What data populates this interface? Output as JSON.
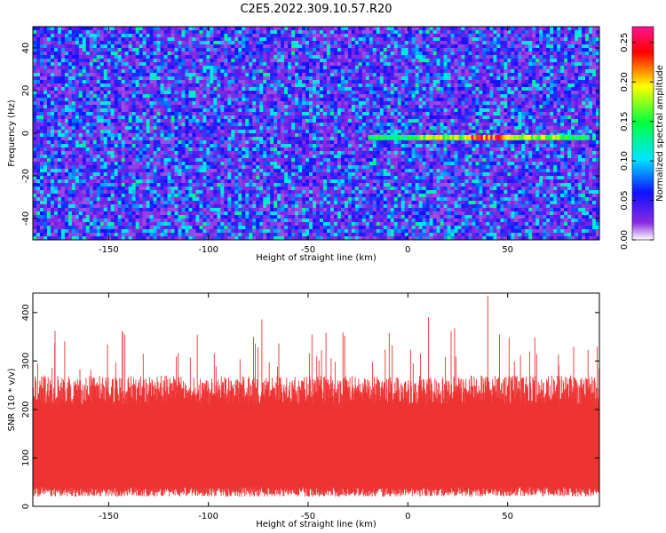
{
  "figure_title": "C2E5.2022.309.10.57.R20",
  "chart_data": [
    {
      "type": "heatmap",
      "xlabel": "Height of straight line (km)",
      "ylabel": "Frequency (Hz)",
      "xlim": [
        -188,
        96
      ],
      "ylim": [
        -50,
        50
      ],
      "xticks": [
        -150,
        -100,
        -50,
        0,
        50
      ],
      "yticks": [
        -40,
        -20,
        0,
        20,
        40
      ],
      "colorbar": {
        "label": "Normalized spectral amplitude",
        "range": [
          0,
          0.27
        ],
        "ticks": [
          "0.00",
          "0.05",
          "0.10",
          "0.15",
          "0.20",
          "0.25"
        ],
        "colormap": [
          "#ffffff",
          "#8a2be2",
          "#1010ff",
          "#00e5ff",
          "#00ff40",
          "#ffff00",
          "#ff0000",
          "#ff1493"
        ]
      },
      "background_level": 0.06,
      "signal_track": {
        "x_range_km": [
          -20,
          90
        ],
        "frequency_hz": -2,
        "peak_amplitude": 0.27,
        "peak_x_km": [
          30,
          50
        ]
      }
    },
    {
      "type": "line",
      "xlabel": "Height of straight line (km)",
      "ylabel": "SNR (10 * v/v)",
      "xlim": [
        -188,
        96
      ],
      "ylim": [
        0,
        440
      ],
      "xticks": [
        -150,
        -100,
        -50,
        0,
        50
      ],
      "yticks": [
        0,
        100,
        200,
        300,
        400
      ],
      "series": [
        {
          "color": "#ee3333",
          "typical_range": [
            20,
            250
          ],
          "max": 435,
          "max_at_km": 40
        }
      ]
    }
  ]
}
